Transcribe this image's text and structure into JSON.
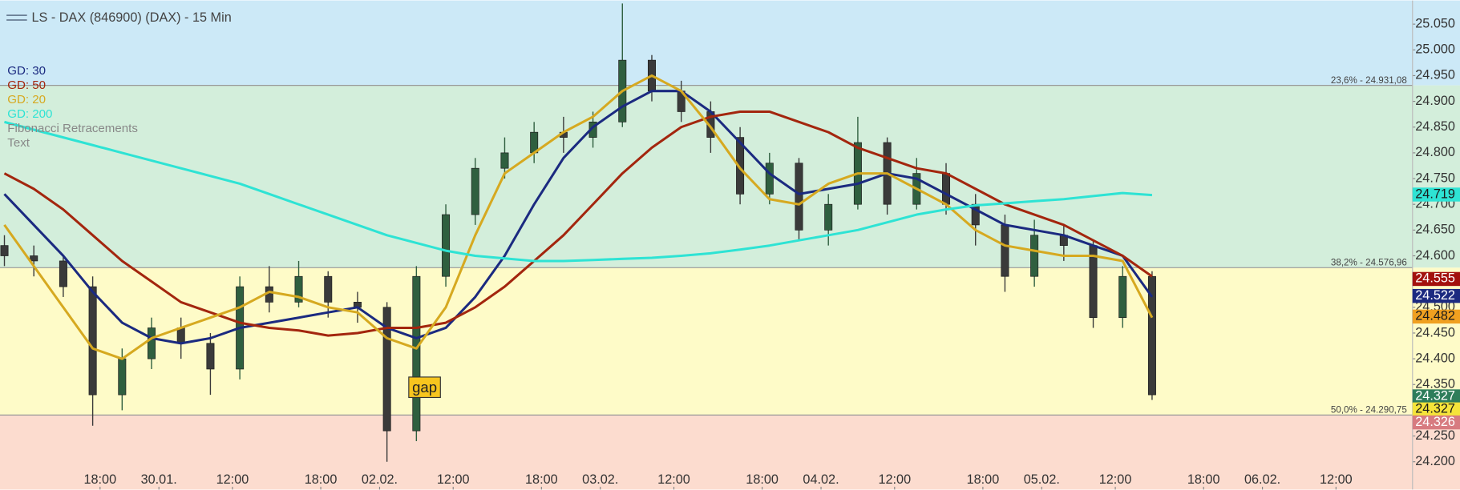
{
  "chart_data": {
    "type": "candlestick",
    "title": "LS - DAX (846900) (DAX) - 15 Min",
    "x": [
      0,
      2,
      4,
      6,
      8,
      10,
      12,
      14,
      16,
      18,
      20,
      22,
      24,
      26,
      28,
      30,
      32,
      34,
      36,
      38,
      40,
      42,
      44,
      46,
      48,
      50,
      52,
      54,
      56,
      58,
      60,
      62,
      64,
      66,
      68,
      70,
      72,
      74,
      76,
      78
    ],
    "open": [
      24620,
      24600,
      24590,
      24540,
      24330,
      24400,
      24460,
      24430,
      24380,
      24540,
      24510,
      24560,
      24510,
      24500,
      24260,
      24560,
      24680,
      24770,
      24800,
      24840,
      24830,
      24860,
      24980,
      24920,
      24880,
      24830,
      24720,
      24780,
      24650,
      24700,
      24820,
      24700,
      24760,
      24700,
      24660,
      24560,
      24640,
      24620,
      24480,
      24560
    ],
    "high": [
      24640,
      24620,
      24600,
      24560,
      24420,
      24480,
      24480,
      24450,
      24560,
      24580,
      24590,
      24570,
      24530,
      24510,
      24580,
      24700,
      24790,
      24830,
      24860,
      24870,
      24880,
      25090,
      24990,
      24940,
      24900,
      24850,
      24800,
      24790,
      24720,
      24870,
      24830,
      24790,
      24780,
      24720,
      24680,
      24670,
      24660,
      24630,
      24580,
      24570
    ],
    "low": [
      24580,
      24560,
      24520,
      24270,
      24300,
      24380,
      24400,
      24330,
      24360,
      24490,
      24500,
      24480,
      24470,
      24200,
      24240,
      24540,
      24660,
      24750,
      24780,
      24800,
      24810,
      24850,
      24900,
      24860,
      24800,
      24700,
      24700,
      24630,
      24620,
      24690,
      24680,
      24690,
      24680,
      24620,
      24530,
      24540,
      24590,
      24460,
      24460,
      24320
    ],
    "close": [
      24600,
      24590,
      24540,
      24330,
      24400,
      24460,
      24430,
      24380,
      24540,
      24510,
      24560,
      24510,
      24500,
      24260,
      24560,
      24680,
      24770,
      24800,
      24840,
      24830,
      24860,
      24980,
      24920,
      24880,
      24830,
      24720,
      24780,
      24650,
      24700,
      24820,
      24700,
      24760,
      24700,
      24660,
      24560,
      24640,
      24620,
      24480,
      24560,
      24330
    ],
    "up_color": "#2f5f3f",
    "down_color": "#3a3a3a",
    "series": [
      {
        "name": "GD: 30",
        "color": "#1b2a80",
        "values": [
          24720,
          24660,
          24600,
          24530,
          24470,
          24440,
          24430,
          24440,
          24460,
          24470,
          24480,
          24490,
          24500,
          24460,
          24440,
          24460,
          24520,
          24600,
          24700,
          24790,
          24850,
          24890,
          24920,
          24920,
          24880,
          24820,
          24760,
          24720,
          24730,
          24740,
          24760,
          24750,
          24720,
          24690,
          24660,
          24650,
          24640,
          24620,
          24600,
          24520
        ]
      },
      {
        "name": "GD: 50",
        "color": "#a3260e",
        "values": [
          24760,
          24730,
          24690,
          24640,
          24590,
          24550,
          24510,
          24490,
          24470,
          24460,
          24455,
          24445,
          24450,
          24460,
          24460,
          24470,
          24500,
          24540,
          24590,
          24640,
          24700,
          24760,
          24810,
          24850,
          24870,
          24880,
          24880,
          24860,
          24840,
          24810,
          24790,
          24770,
          24760,
          24730,
          24700,
          24680,
          24660,
          24630,
          24600,
          24560
        ]
      },
      {
        "name": "GD: 20",
        "color": "#d6a920",
        "values": [
          24660,
          24580,
          24500,
          24420,
          24400,
          24440,
          24460,
          24480,
          24500,
          24530,
          24520,
          24500,
          24490,
          24440,
          24420,
          24500,
          24640,
          24760,
          24800,
          24840,
          24870,
          24920,
          24950,
          24920,
          24850,
          24770,
          24710,
          24700,
          24740,
          24760,
          24760,
          24730,
          24700,
          24650,
          24620,
          24610,
          24600,
          24600,
          24590,
          24480
        ]
      },
      {
        "name": "GD: 200",
        "color": "#2ee3d4",
        "values": [
          24860,
          24845,
          24830,
          24815,
          24800,
          24785,
          24770,
          24755,
          24740,
          24720,
          24700,
          24680,
          24660,
          24640,
          24625,
          24610,
          24600,
          24595,
          24590,
          24590,
          24592,
          24594,
          24596,
          24600,
          24605,
          24612,
          24620,
          24630,
          24640,
          24650,
          24665,
          24680,
          24690,
          24698,
          24702,
          24706,
          24710,
          24716,
          24722,
          24718
        ]
      }
    ],
    "legend_extra": [
      "Fibonacci Retracements",
      "Text"
    ],
    "fibonacci": [
      {
        "label": "23,6% - 24.931,08",
        "value": 24931.08
      },
      {
        "label": "38,2% - 24.576,96",
        "value": 24576.96
      },
      {
        "label": "50,0% - 24.290,75",
        "value": 24290.75
      }
    ],
    "zone_colors": [
      "#cce9f7",
      "#d3eedb",
      "#fefbc8",
      "#fcdccf"
    ],
    "annotation": "gap",
    "price_labels": [
      {
        "label": "24.719",
        "value": 24719,
        "color": "#2ee3d4",
        "text_color": "#1a1a1a"
      },
      {
        "label": "24.555",
        "value": 24555,
        "color": "#a3120e",
        "text_color": "#ffffff"
      },
      {
        "label": "24.522",
        "value": 24522,
        "color": "#1b2a80",
        "text_color": "#ffffff"
      },
      {
        "label": "24.482",
        "value": 24482,
        "color": "#f0a020",
        "text_color": "#1a1a1a"
      },
      {
        "label": "24.327",
        "value": 24327,
        "color": "#2e7d5b",
        "text_color": "#ffffff"
      },
      {
        "label": "24.327",
        "value": 24327,
        "color": "#f5e43a",
        "text_color": "#1a1a1a"
      },
      {
        "label": "24.326",
        "value": 24326,
        "color": "#d77b80",
        "text_color": "#ffffff"
      }
    ],
    "xlim": [
      -0.3,
      95.7
    ],
    "xticks": [
      {
        "value": 6.5,
        "label": "18:00"
      },
      {
        "value": 10.5,
        "label": "30.01."
      },
      {
        "value": 15.5,
        "label": "12:00"
      },
      {
        "value": 21.5,
        "label": "18:00"
      },
      {
        "value": 25.5,
        "label": "02.02."
      },
      {
        "value": 30.5,
        "label": "12:00"
      },
      {
        "value": 36.5,
        "label": "18:00"
      },
      {
        "value": 40.5,
        "label": "03.02."
      },
      {
        "value": 45.5,
        "label": "12:00"
      },
      {
        "value": 51.5,
        "label": "18:00"
      },
      {
        "value": 55.5,
        "label": "04.02."
      },
      {
        "value": 60.5,
        "label": "12:00"
      },
      {
        "value": 66.5,
        "label": "18:00"
      },
      {
        "value": 70.5,
        "label": "05.02."
      },
      {
        "value": 75.5,
        "label": "12:00"
      },
      {
        "value": 81.5,
        "label": "18:00"
      },
      {
        "value": 85.5,
        "label": "06.02."
      },
      {
        "value": 90.5,
        "label": "12:00"
      }
    ],
    "ylim": [
      24146,
      25096
    ],
    "yticks": [
      {
        "value": 24200,
        "label": "24.200"
      },
      {
        "value": 24250,
        "label": "24.250"
      },
      {
        "value": 24300,
        "label": "24.300"
      },
      {
        "value": 24350,
        "label": "24.350"
      },
      {
        "value": 24400,
        "label": "24.400"
      },
      {
        "value": 24450,
        "label": "24.450"
      },
      {
        "value": 24500,
        "label": "24.500"
      },
      {
        "value": 24550,
        "label": "24.550"
      },
      {
        "value": 24600,
        "label": "24.600"
      },
      {
        "value": 24650,
        "label": "24.650"
      },
      {
        "value": 24700,
        "label": "24.700"
      },
      {
        "value": 24750,
        "label": "24.750"
      },
      {
        "value": 24800,
        "label": "24.800"
      },
      {
        "value": 24850,
        "label": "24.850"
      },
      {
        "value": 24900,
        "label": "24.900"
      },
      {
        "value": 24950,
        "label": "24.950"
      },
      {
        "value": 25000,
        "label": "25.000"
      },
      {
        "value": 25050,
        "label": "25.050"
      }
    ]
  }
}
